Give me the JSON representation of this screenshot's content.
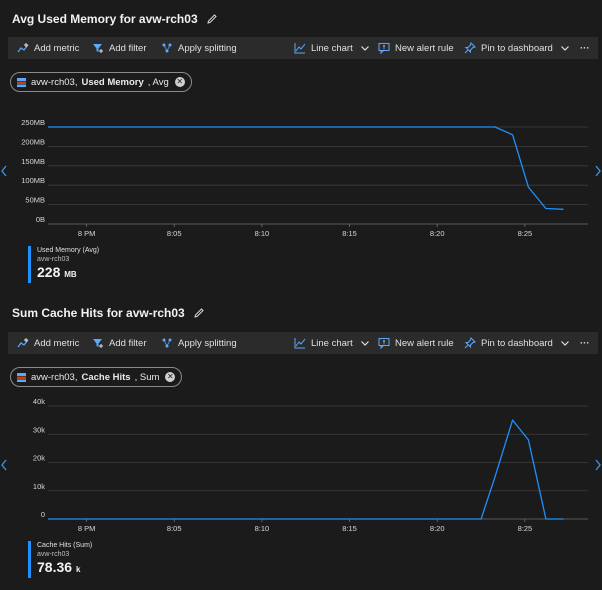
{
  "toolbar": {
    "add_metric": "Add metric",
    "add_filter": "Add filter",
    "apply_splitting": "Apply splitting",
    "line_chart": "Line chart",
    "new_alert_rule": "New alert rule",
    "pin_to_dashboard": "Pin to dashboard",
    "more": "···"
  },
  "colors": {
    "series": "#1e90ff",
    "background": "#1b1b1b",
    "toolbar": "#2b2b2b"
  },
  "charts": [
    {
      "title": "Avg Used Memory for avw-rch03",
      "pill": {
        "resource": "avw-rch03, ",
        "metric": "Used Memory",
        "agg": ", Avg"
      },
      "legend": {
        "name": "Used Memory (Avg)",
        "resource": "avw-rch03",
        "value": "228",
        "unit": "MB"
      }
    },
    {
      "title": "Sum Cache Hits for avw-rch03",
      "pill": {
        "resource": "avw-rch03, ",
        "metric": "Cache Hits",
        "agg": ", Sum"
      },
      "legend": {
        "name": "Cache Hits (Sum)",
        "resource": "avw-rch03",
        "value": "78.36",
        "unit": "k"
      }
    }
  ],
  "chart_data": [
    {
      "type": "line",
      "title": "Avg Used Memory for avw-rch03",
      "xlabel": "",
      "ylabel": "",
      "x_tick_labels": [
        "8 PM",
        "8:05",
        "8:10",
        "8:15",
        "8:20",
        "8:25"
      ],
      "x_tick_minutes": [
        0,
        5,
        10,
        15,
        20,
        25
      ],
      "xlim": [
        -2.2,
        28.6
      ],
      "y_tick_labels": [
        "0B",
        "50MB",
        "100MB",
        "150MB",
        "200MB",
        "250MB"
      ],
      "y_tick_values": [
        0,
        50,
        100,
        150,
        200,
        250
      ],
      "ylim": [
        0,
        250
      ],
      "series": [
        {
          "name": "Used Memory (Avg)",
          "x": [
            -2.2,
            22.5,
            23.3,
            24.3,
            25.2,
            26.2,
            27.2
          ],
          "values": [
            250,
            250,
            250,
            230,
            95,
            40,
            38
          ]
        }
      ]
    },
    {
      "type": "line",
      "title": "Sum Cache Hits for avw-rch03",
      "xlabel": "",
      "ylabel": "",
      "x_tick_labels": [
        "8 PM",
        "8:05",
        "8:10",
        "8:15",
        "8:20",
        "8:25"
      ],
      "x_tick_minutes": [
        0,
        5,
        10,
        15,
        20,
        25
      ],
      "xlim": [
        -2.2,
        28.6
      ],
      "y_tick_labels": [
        "0",
        "10k",
        "20k",
        "30k",
        "40k"
      ],
      "y_tick_values": [
        0,
        10,
        20,
        30,
        40
      ],
      "ylim": [
        0,
        40
      ],
      "series": [
        {
          "name": "Cache Hits (Sum)",
          "x": [
            -2.2,
            22.5,
            23.3,
            24.3,
            25.2,
            26.2,
            27.2
          ],
          "values": [
            0,
            0,
            15,
            35,
            28,
            0,
            0
          ]
        }
      ]
    }
  ]
}
